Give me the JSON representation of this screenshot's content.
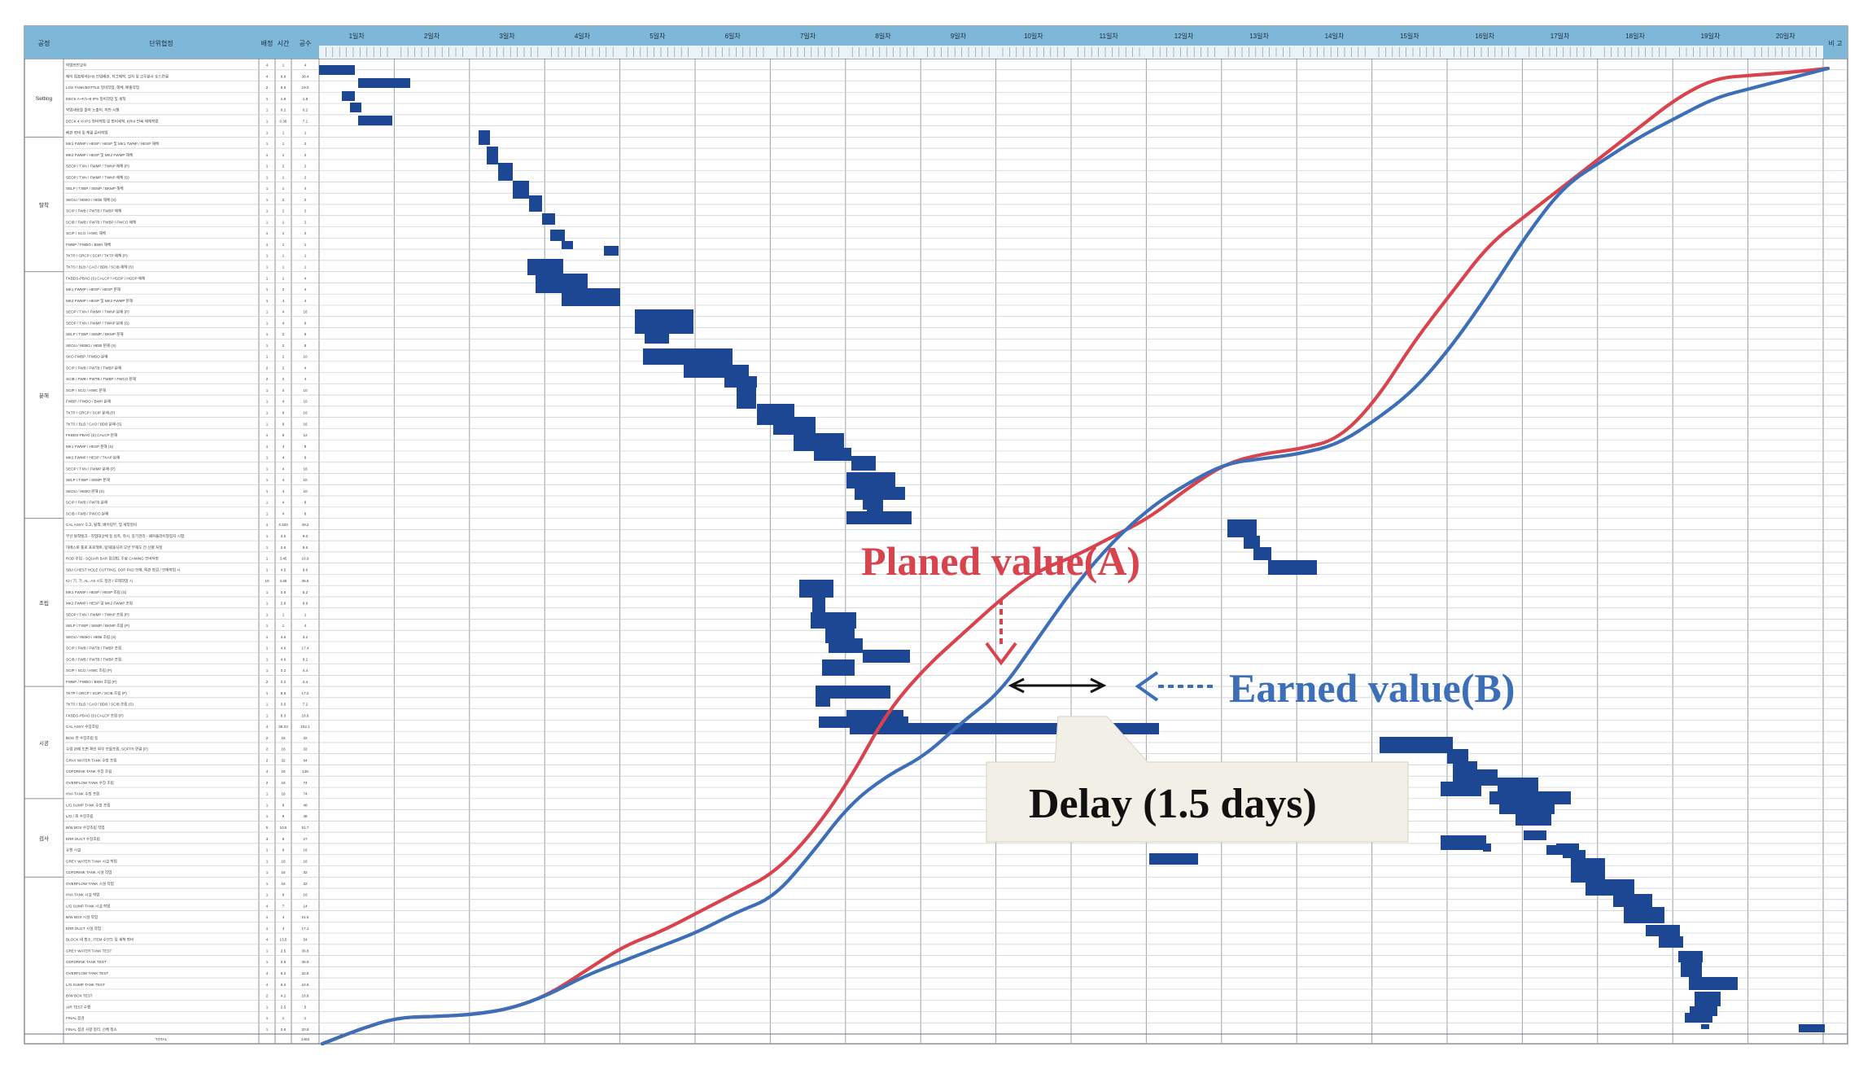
{
  "header": {
    "col_phase": "공정",
    "col_activity": "단위협정",
    "col_a": "배정",
    "col_b": "시간",
    "col_c": "공수",
    "col_note": "비 고"
  },
  "days": [
    "1일차",
    "2일차",
    "3일차",
    "4일차",
    "5일차",
    "6일차",
    "7일차",
    "8일차",
    "9일차",
    "10일차",
    "11일차",
    "12일차",
    "13일차",
    "14일차",
    "15일차",
    "16일차",
    "17일차",
    "18일차",
    "19일차",
    "20일차"
  ],
  "phases": [
    {
      "name": "Setting",
      "rows": 7
    },
    {
      "name": "탈착",
      "rows": 12
    },
    {
      "name": "분해",
      "rows": 22
    },
    {
      "name": "조립",
      "rows": 15
    },
    {
      "name": "시공",
      "rows": 10
    },
    {
      "name": "검사",
      "rows": 7
    }
  ],
  "activities": [
    {
      "name": "작업안전교육",
      "a": "4",
      "b": "1",
      "c": "4"
    },
    {
      "name": "에어 컴프레셔(IHI) 인입배관, 지그제작, 설치 및 고무분사 호스연결",
      "a": "4",
      "b": "9.6",
      "c": "38.4"
    },
    {
      "name": "LOS TANK/BOTTLE 정비작업, 해체, 배출작업",
      "a": "2",
      "b": "9.5",
      "c": "19.0"
    },
    {
      "name": "DECK A~F/1~9 IPS 정비작업 및 세척",
      "a": "1",
      "b": "1.8",
      "c": "1.8"
    },
    {
      "name": "작업내용물 물자 노출이, 지반 시험",
      "a": "1",
      "b": "0.2",
      "c": "0.2"
    },
    {
      "name": "DECK 4~8 IPS 정비작업 및 정비세척, KRIX 반복 해체작업",
      "a": "1",
      "b": "0.36",
      "c": "7.1"
    },
    {
      "name": "배관 정비 및 체결 준비작업",
      "a": "1",
      "b": "1",
      "c": "1"
    },
    {
      "name": "MK1 FWMP / HESP / HESP 및 MK1 TWNP / HESP 해체",
      "a": "1",
      "b": "1",
      "c": "2"
    },
    {
      "name": "MK2 FWMP / HESP 및 MK2 FWMP 해체",
      "a": "1",
      "b": "1",
      "c": "2"
    },
    {
      "name": "SEOP / TXN / FWMP / TWNP 해체 (P)",
      "a": "1",
      "b": "2",
      "c": "2"
    },
    {
      "name": "SEOP / TXN / FWMP / TWNP 해체 (S)",
      "a": "1",
      "b": "1",
      "c": "2"
    },
    {
      "name": "SELP / TXBP / SEMP / BKMP 해체",
      "a": "1",
      "b": "1",
      "c": "4"
    },
    {
      "name": "SEOU / HEBO / HEBI 해체 (S)",
      "a": "1",
      "b": "2",
      "c": "2"
    },
    {
      "name": "SCIP / FWB / FWTB / TWBP 해체",
      "a": "1",
      "b": "2",
      "c": "2"
    },
    {
      "name": "SCIB / FWB / FWTB / TWBP / FWCO 해체",
      "a": "1",
      "b": "1",
      "c": "2"
    },
    {
      "name": "SCIP / SCO / HWC 해체",
      "a": "1",
      "b": "1",
      "c": "2"
    },
    {
      "name": "FWBP / FWBO / BWH 해체",
      "a": "1",
      "b": "1",
      "c": "1"
    },
    {
      "name": "TKTP / GRCP / SCIP / TKTP 해체 (P)",
      "a": "1",
      "b": "1",
      "c": "1"
    },
    {
      "name": "TKTS / BLB / CAO / BDB / SCIB 해체 (S)",
      "a": "1",
      "b": "1",
      "c": "1"
    },
    {
      "name": "FKBDS-PBAO (S) CALCP / HGDP / HGDP 해체",
      "a": "1",
      "b": "1",
      "c": "4"
    },
    {
      "name": "MK1 FWMP / HESP / HESP 분해",
      "a": "1",
      "b": "2",
      "c": "4"
    },
    {
      "name": "MK2 FWMP / HESP 및 MK2 FWMP 분해",
      "a": "1",
      "b": "4",
      "c": "4"
    },
    {
      "name": "SEOP / TXN / FWMP / TWNP 분해 (P)",
      "a": "1",
      "b": "4",
      "c": "16"
    },
    {
      "name": "SEOP / TXN / FWMP / TWNP 분해 (S)",
      "a": "1",
      "b": "4",
      "c": "8"
    },
    {
      "name": "SELP / TXBP / SEMP / BKMP 분해",
      "a": "1",
      "b": "2",
      "c": "8"
    },
    {
      "name": "SEOU / HEBO / HEBI 분해 (S)",
      "a": "1",
      "b": "2",
      "c": "8"
    },
    {
      "name": "SKO FWBP / FWBO 분해",
      "a": "1",
      "b": "2",
      "c": "10"
    },
    {
      "name": "SCIP / FWB / FWTB / TWBP 분해",
      "a": "2",
      "b": "2",
      "c": "4"
    },
    {
      "name": "SCIB / FWB / FWTB / TWBP / FWCO 분해",
      "a": "2",
      "b": "2",
      "c": "4"
    },
    {
      "name": "SCIP / SCO / HWC 분해",
      "a": "1",
      "b": "4",
      "c": "10"
    },
    {
      "name": "FWBP / FWBO / BWH 분해",
      "a": "1",
      "b": "4",
      "c": "10"
    },
    {
      "name": "TKTP / GRCP / SCIP 분해 (P)",
      "a": "1",
      "b": "8",
      "c": "16"
    },
    {
      "name": "TKTS / BLB / CAO / BDB 분해 (S)",
      "a": "1",
      "b": "8",
      "c": "16"
    },
    {
      "name": "FKBDS-PBAO (S) CALCP 분해",
      "a": "1",
      "b": "8",
      "c": "12"
    },
    {
      "name": "MK1 FWMP / HESP 분해 (S)",
      "a": "1",
      "b": "4",
      "c": "8"
    },
    {
      "name": "MK2 FWMP / HESP / TKAP 분해",
      "a": "1",
      "b": "4",
      "c": "8"
    },
    {
      "name": "SEOP / TXN / FWMP 분해 (P)",
      "a": "1",
      "b": "4",
      "c": "16"
    },
    {
      "name": "SELP / TXBP / SEMP 분해",
      "a": "1",
      "b": "4",
      "c": "10"
    },
    {
      "name": "SEOU / HEBO 분해 (S)",
      "a": "1",
      "b": "4",
      "c": "10"
    },
    {
      "name": "SCIP / FWB / FWTB 분해",
      "a": "1",
      "b": "4",
      "c": "8"
    },
    {
      "name": "SCIB / FWB / FWCO 분해",
      "a": "1",
      "b": "4",
      "c": "8"
    },
    {
      "name": "CAL ASSY 도고, 탈착, 베어링부, 및 세척정비",
      "a": "1",
      "b": "4.334",
      "c": "49.2"
    },
    {
      "name": "부산 탈착탱크 - 작업대상체 등 실측, 취시, 증기관리 - 패커플라이형점차 시험",
      "a": "1",
      "b": "4.5",
      "c": "9.0"
    },
    {
      "name": "하에스토 톨로 프로젝트, 탑재대/사저 모반 부재도 전 선별 처정",
      "a": "1",
      "b": "2.6",
      "c": "9.6"
    },
    {
      "name": "ROD 부입 - SQUAR BAR 점검법, 주료 CAMING 모바처정",
      "a": "1",
      "b": "3.45",
      "c": "10.9"
    },
    {
      "name": "SBA CHEST HOLE CUTTING, SOP PAD 모래, 외관 정검 / 모래작업 시",
      "a": "1",
      "b": "4.5",
      "c": "9.6"
    },
    {
      "name": "IO / 기, 기, AL, AS 시도 정검 / 모래작업 시",
      "a": "10",
      "b": "3.65",
      "c": "36.5"
    },
    {
      "name": "MK1 FWMP / HESP / HESP 조립 (S)",
      "a": "1",
      "b": "2.6",
      "c": "5.2"
    },
    {
      "name": "MK2 FWMP / HESP 및 MK2 FWMP 조립",
      "a": "1",
      "b": "2.6",
      "c": "9.9"
    },
    {
      "name": "SEOP / TXN / FWMP / TWNP 조립 (P)",
      "a": "1",
      "b": "1",
      "c": "1"
    },
    {
      "name": "SELP / TXBP / SEMP / BKMP 조립 (P)",
      "a": "1",
      "b": "1",
      "c": "4"
    },
    {
      "name": "SEOU / HEBO / HEBI 조립 (S)",
      "a": "1",
      "b": "4.6",
      "c": "3.2"
    },
    {
      "name": "SCIP / FWB / FWTB / TWBP 조립",
      "a": "1",
      "b": "4.6",
      "c": "17.4"
    },
    {
      "name": "SCIB / FWB / FWTB / TWBP 조립",
      "a": "1",
      "b": "4.6",
      "c": "9.2"
    },
    {
      "name": "SCIP / SCO / HWC 조립 (P)",
      "a": "1",
      "b": "2.2",
      "c": "4.4"
    },
    {
      "name": "FWBP / FWBO / BWH 조립 (P)",
      "a": "2",
      "b": "2.2",
      "c": "4.4"
    },
    {
      "name": "TKTP / GRCP / SCIP / SCIB 조립 (P)",
      "a": "1",
      "b": "8.6",
      "c": "17.2"
    },
    {
      "name": "TKTS / BLB / CAO / BDB / SCIB 조립 (S)",
      "a": "1",
      "b": "3.6",
      "c": "7.2"
    },
    {
      "name": "FKBDS-PBAO (S) CALCP 조립 (P)",
      "a": "1",
      "b": "8.3",
      "c": "16.6"
    },
    {
      "name": "CAL ASSY 수장조립",
      "a": "4",
      "b": "38.03",
      "c": "152.1"
    },
    {
      "name": "BOG 관 수장조립 등",
      "a": "2",
      "b": "16",
      "c": "32"
    },
    {
      "name": "수업 관레 도면 확인 외부 모듈조립, SOFTR 연결 (P)",
      "a": "2",
      "b": "16",
      "c": "32"
    },
    {
      "name": "GRAY WATER TANK 수장 조립",
      "a": "2",
      "b": "32",
      "c": "64"
    },
    {
      "name": "CDFDRINK TANK 수장 조립",
      "a": "4",
      "b": "16",
      "c": "128"
    },
    {
      "name": "OVERFLOW TANK 수장 조립",
      "a": "2",
      "b": "16",
      "c": "74"
    },
    {
      "name": "HVA TANK 수장 조립",
      "a": "1",
      "b": "16",
      "c": "74"
    },
    {
      "name": "L/G SUMP TANK 수장 조립",
      "a": "1",
      "b": "8",
      "c": "48"
    },
    {
      "name": "L/O / 외 수장조립",
      "a": "1",
      "b": "8",
      "c": "48"
    },
    {
      "name": "B/W BOX 수장조립 작업",
      "a": "5",
      "b": "10.5",
      "c": "51.7"
    },
    {
      "name": "ERR DUCT 수장조립",
      "a": "3",
      "b": "9",
      "c": "27"
    },
    {
      "name": "유청 시설",
      "a": "1",
      "b": "8",
      "c": "16"
    },
    {
      "name": "GREY WATER TANK 시설 작업",
      "a": "1",
      "b": "16",
      "c": "16"
    },
    {
      "name": "CDFDRINK TANK 시설 작업",
      "a": "1",
      "b": "16",
      "c": "32"
    },
    {
      "name": "OVERFLOW TANK 시설 작업",
      "a": "1",
      "b": "16",
      "c": "32"
    },
    {
      "name": "HVA TANK 시설 작업",
      "a": "1",
      "b": "8",
      "c": "16"
    },
    {
      "name": "L/G SUMP TANK 시설 작업",
      "a": "4",
      "b": "7",
      "c": "14"
    },
    {
      "name": "B/W BOX 시설 작업",
      "a": "1",
      "b": "4",
      "c": "21.5"
    },
    {
      "name": "ERR DUCT 시설 작업",
      "a": "1",
      "b": "4",
      "c": "17.1"
    },
    {
      "name": "BLOCK 내 청소, ITEM 수보도 및 세척 정비",
      "a": "4",
      "b": "13.5",
      "c": "54"
    },
    {
      "name": "GREY WATER TANK TEST",
      "a": "1",
      "b": "2.5",
      "c": "36.8"
    },
    {
      "name": "CDFDRINK TANK TEST",
      "a": "1",
      "b": "2.5",
      "c": "36.8"
    },
    {
      "name": "OVERFLOW TANK TEST",
      "a": "4",
      "b": "6.2",
      "c": "32.8"
    },
    {
      "name": "L/G SUMP TANK TEST",
      "a": "4",
      "b": "6.2",
      "c": "24.8"
    },
    {
      "name": "B/W BOX TEST",
      "a": "2",
      "b": "4.2",
      "c": "16.8"
    },
    {
      "name": "AIR TEST 수행",
      "a": "1",
      "b": "2.5",
      "c": "5"
    },
    {
      "name": "FINAL 점검",
      "a": "1",
      "b": "1",
      "c": "1"
    },
    {
      "name": "FINAL 점검 사항 정리, 선체 청소",
      "a": "1",
      "b": "2.6",
      "c": "20.8"
    }
  ],
  "total": {
    "label": "TOTAL",
    "c": "1453"
  },
  "annotations": {
    "planned": "Planed value(A)",
    "earned": "Earned value(B)",
    "delay": "Delay (1.5 days)"
  },
  "colors": {
    "planned": "#d9434e",
    "earned": "#3d6fb8",
    "bar": "#1d4793",
    "header_bg": "#7fb7d8",
    "grid": "#c8cdd2",
    "callout": "#f2efe6"
  },
  "chart_data": {
    "type": "line",
    "title": "",
    "xlabel": "",
    "ylabel": "",
    "x_unit": "day",
    "xlim": [
      0,
      20
    ],
    "ylim": [
      0,
      100
    ],
    "categories": [
      "1일차",
      "2일차",
      "3일차",
      "4일차",
      "5일차",
      "6일차",
      "7일차",
      "8일차",
      "9일차",
      "10일차",
      "11일차",
      "12일차",
      "13일차",
      "14일차",
      "15일차",
      "16일차",
      "17일차",
      "18일차",
      "19일차",
      "20일차"
    ],
    "series": [
      {
        "name": "Planed value(A)",
        "color": "#d9434e",
        "x": [
          0,
          0.5,
          1.0,
          1.5,
          2.0,
          2.5,
          3.0,
          3.5,
          4.0,
          4.5,
          5.0,
          5.5,
          6.0,
          6.5,
          7.0,
          7.5,
          8.0,
          8.5,
          9.0,
          9.5,
          10.0,
          10.5,
          11.0,
          11.5,
          12.0,
          12.5,
          13.0,
          13.5,
          14.0,
          14.5,
          15.0,
          15.5,
          16.0,
          16.5,
          17.0,
          17.5,
          18.0,
          18.5,
          19.0,
          19.5,
          20.0
        ],
        "values": [
          0,
          1.5,
          2.7,
          2.8,
          3.0,
          3.6,
          5.0,
          7.5,
          10.0,
          11.5,
          13.5,
          15.5,
          17.5,
          21.5,
          27,
          34,
          38.5,
          42,
          45.5,
          48.5,
          50.0,
          52,
          54,
          57,
          59.5,
          60.5,
          61,
          62,
          66,
          72,
          77,
          82,
          85,
          88,
          91,
          94,
          97,
          99,
          99.3,
          99.6,
          100
        ]
      },
      {
        "name": "Earned value(B)",
        "color": "#3d6fb8",
        "x": [
          0,
          0.5,
          1.0,
          1.5,
          2.0,
          2.5,
          3.0,
          3.5,
          4.0,
          4.5,
          5.0,
          5.5,
          6.0,
          6.5,
          7.0,
          7.5,
          8.0,
          8.5,
          9.0,
          9.5,
          10.0,
          10.5,
          11.0,
          11.5,
          12.0,
          12.5,
          13.0,
          13.5,
          14.0,
          14.5,
          15.0,
          15.5,
          16.0,
          16.5,
          17.0,
          17.5,
          18.0,
          18.5,
          19.0,
          19.5,
          20.0
        ],
        "values": [
          0,
          1.5,
          2.7,
          2.8,
          3.0,
          3.6,
          5.0,
          7.0,
          8.5,
          10.0,
          11.5,
          13.5,
          15.0,
          19.5,
          24.5,
          27.5,
          29.5,
          33,
          36,
          41.5,
          47,
          51.5,
          55,
          57.5,
          59.5,
          60,
          60.5,
          61.5,
          64,
          67,
          71.5,
          77,
          83,
          88,
          90.5,
          93,
          95,
          97,
          98,
          99,
          100
        ]
      }
    ],
    "delay": {
      "label": "Delay (1.5 days)",
      "days": 1.5
    }
  }
}
